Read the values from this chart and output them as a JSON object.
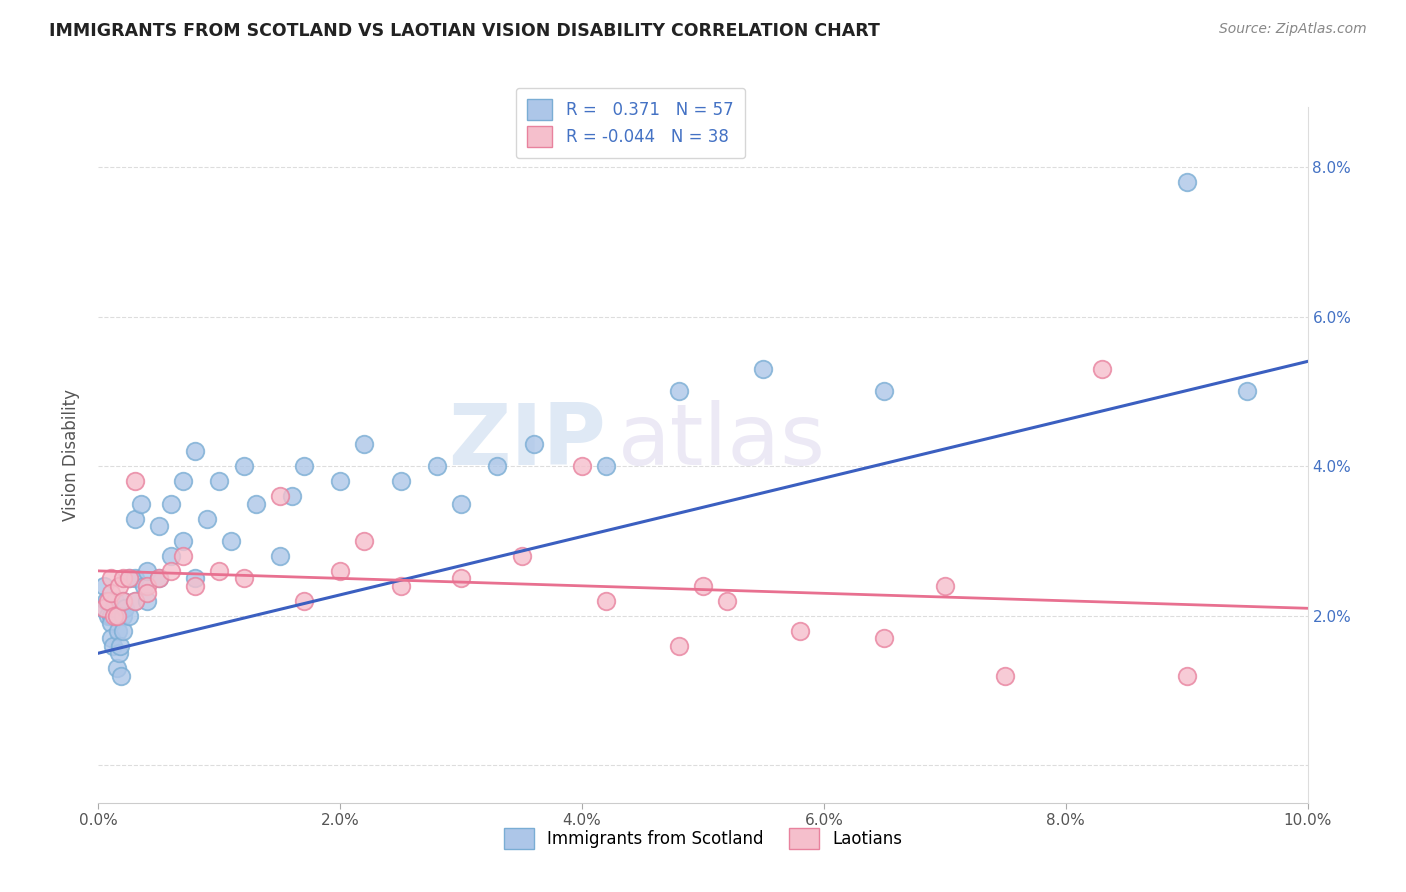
{
  "title": "IMMIGRANTS FROM SCOTLAND VS LAOTIAN VISION DISABILITY CORRELATION CHART",
  "source": "Source: ZipAtlas.com",
  "ylabel": "Vision Disability",
  "xlim": [
    0.0,
    0.1
  ],
  "ylim": [
    -0.005,
    0.088
  ],
  "xticks": [
    0.0,
    0.02,
    0.04,
    0.06,
    0.08,
    0.1
  ],
  "yticks": [
    0.0,
    0.02,
    0.04,
    0.06,
    0.08
  ],
  "xticklabels": [
    "0.0%",
    "2.0%",
    "4.0%",
    "6.0%",
    "8.0%",
    "10.0%"
  ],
  "yticklabels_right": [
    "",
    "2.0%",
    "4.0%",
    "6.0%",
    "8.0%"
  ],
  "scotland_color": "#adc6e8",
  "scotland_edge": "#7aadd4",
  "laotian_color": "#f5bfcc",
  "laotian_edge": "#e8829e",
  "trendline_scotland": "#3b5fc0",
  "trendline_laotian": "#e87090",
  "R_scotland": 0.371,
  "N_scotland": 57,
  "R_laotian": -0.044,
  "N_laotian": 38,
  "scotland_x": [
    0.0003,
    0.0005,
    0.0006,
    0.0008,
    0.001,
    0.001,
    0.001,
    0.0012,
    0.0013,
    0.0014,
    0.0015,
    0.0016,
    0.0017,
    0.0018,
    0.0019,
    0.002,
    0.002,
    0.002,
    0.0022,
    0.0025,
    0.0025,
    0.003,
    0.003,
    0.003,
    0.0035,
    0.0038,
    0.004,
    0.004,
    0.005,
    0.005,
    0.006,
    0.006,
    0.007,
    0.007,
    0.008,
    0.008,
    0.009,
    0.01,
    0.011,
    0.012,
    0.013,
    0.015,
    0.016,
    0.017,
    0.02,
    0.022,
    0.025,
    0.028,
    0.03,
    0.033,
    0.036,
    0.042,
    0.048,
    0.055,
    0.065,
    0.09,
    0.095
  ],
  "scotland_y": [
    0.021,
    0.024,
    0.022,
    0.02,
    0.02,
    0.019,
    0.017,
    0.016,
    0.021,
    0.022,
    0.013,
    0.018,
    0.015,
    0.016,
    0.012,
    0.022,
    0.02,
    0.018,
    0.021,
    0.025,
    0.02,
    0.033,
    0.025,
    0.022,
    0.035,
    0.024,
    0.026,
    0.022,
    0.032,
    0.025,
    0.035,
    0.028,
    0.038,
    0.03,
    0.042,
    0.025,
    0.033,
    0.038,
    0.03,
    0.04,
    0.035,
    0.028,
    0.036,
    0.04,
    0.038,
    0.043,
    0.038,
    0.04,
    0.035,
    0.04,
    0.043,
    0.04,
    0.05,
    0.053,
    0.05,
    0.078,
    0.05
  ],
  "laotian_x": [
    0.0005,
    0.0008,
    0.001,
    0.001,
    0.0013,
    0.0015,
    0.0017,
    0.002,
    0.002,
    0.0025,
    0.003,
    0.003,
    0.004,
    0.004,
    0.005,
    0.006,
    0.007,
    0.008,
    0.01,
    0.012,
    0.015,
    0.017,
    0.02,
    0.022,
    0.025,
    0.03,
    0.035,
    0.04,
    0.042,
    0.048,
    0.05,
    0.052,
    0.058,
    0.065,
    0.07,
    0.075,
    0.083,
    0.09
  ],
  "laotian_y": [
    0.021,
    0.022,
    0.025,
    0.023,
    0.02,
    0.02,
    0.024,
    0.025,
    0.022,
    0.025,
    0.038,
    0.022,
    0.024,
    0.023,
    0.025,
    0.026,
    0.028,
    0.024,
    0.026,
    0.025,
    0.036,
    0.022,
    0.026,
    0.03,
    0.024,
    0.025,
    0.028,
    0.04,
    0.022,
    0.016,
    0.024,
    0.022,
    0.018,
    0.017,
    0.024,
    0.012,
    0.053,
    0.012
  ],
  "trendline_sc_start": 0.015,
  "trendline_sc_end": 0.054,
  "trendline_la_start": 0.026,
  "trendline_la_end": 0.021,
  "watermark_zip": "ZIP",
  "watermark_atlas": "atlas",
  "background_color": "#ffffff",
  "grid_color": "#dddddd"
}
